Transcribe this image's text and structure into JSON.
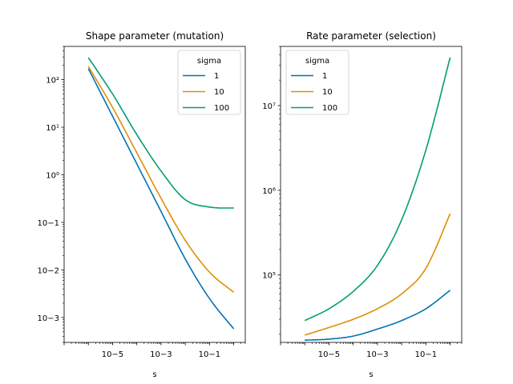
{
  "chart_data": [
    {
      "type": "line",
      "title": "Shape parameter (mutation)",
      "xlabel": "s",
      "ylabel": "",
      "xscale": "log",
      "yscale": "log",
      "xlim": [
        1e-07,
        3
      ],
      "ylim": [
        0.0003,
        500
      ],
      "x": [
        1e-06,
        1e-05,
        0.0001,
        0.001,
        0.01,
        0.1,
        1
      ],
      "xticks": [
        {
          "value": 1e-05,
          "label": "10−5"
        },
        {
          "value": 0.001,
          "label": "10−3"
        },
        {
          "value": 0.1,
          "label": "10−1"
        }
      ],
      "yticks": [
        {
          "value": 0.001,
          "label": "10−3"
        },
        {
          "value": 0.01,
          "label": "10−2"
        },
        {
          "value": 0.1,
          "label": "10−1"
        },
        {
          "value": 1,
          "label": "10⁰"
        },
        {
          "value": 10,
          "label": "10¹"
        },
        {
          "value": 100,
          "label": "10²"
        }
      ],
      "legend_title": "sigma",
      "legend_position": "upper-right",
      "series": [
        {
          "name": "1",
          "color": "#0072b2",
          "values": [
            170,
            17,
            1.7,
            0.17,
            0.017,
            0.0025,
            0.00058
          ]
        },
        {
          "name": "10",
          "color": "#de8f05",
          "values": [
            190,
            26,
            2.9,
            0.32,
            0.042,
            0.009,
            0.0034
          ]
        },
        {
          "name": "100",
          "color": "#029e73",
          "values": [
            290,
            50,
            7,
            1.2,
            0.3,
            0.21,
            0.2
          ]
        }
      ]
    },
    {
      "type": "line",
      "title": "Rate parameter (selection)",
      "xlabel": "s",
      "ylabel": "",
      "xscale": "log",
      "yscale": "log",
      "xlim": [
        1e-07,
        3
      ],
      "ylim": [
        16000,
        50000000
      ],
      "x": [
        1e-06,
        1e-05,
        0.0001,
        0.001,
        0.01,
        0.1,
        1
      ],
      "xticks": [
        {
          "value": 1e-05,
          "label": "10−5"
        },
        {
          "value": 0.001,
          "label": "10−3"
        },
        {
          "value": 0.1,
          "label": "10−1"
        }
      ],
      "yticks": [
        {
          "value": 100000,
          "label": "10⁵"
        },
        {
          "value": 1000000,
          "label": "10⁶"
        },
        {
          "value": 10000000,
          "label": "10⁷"
        }
      ],
      "legend_title": "sigma",
      "legend_position": "upper-left",
      "series": [
        {
          "name": "1",
          "color": "#0072b2",
          "values": [
            17000,
            17500,
            19000,
            23000,
            29000,
            40000,
            66000
          ]
        },
        {
          "name": "10",
          "color": "#de8f05",
          "values": [
            19500,
            24000,
            30000,
            40000,
            60000,
            120000,
            530000
          ]
        },
        {
          "name": "100",
          "color": "#029e73",
          "values": [
            29000,
            40000,
            64000,
            130000,
            450000,
            3000000,
            37000000
          ]
        }
      ]
    }
  ]
}
